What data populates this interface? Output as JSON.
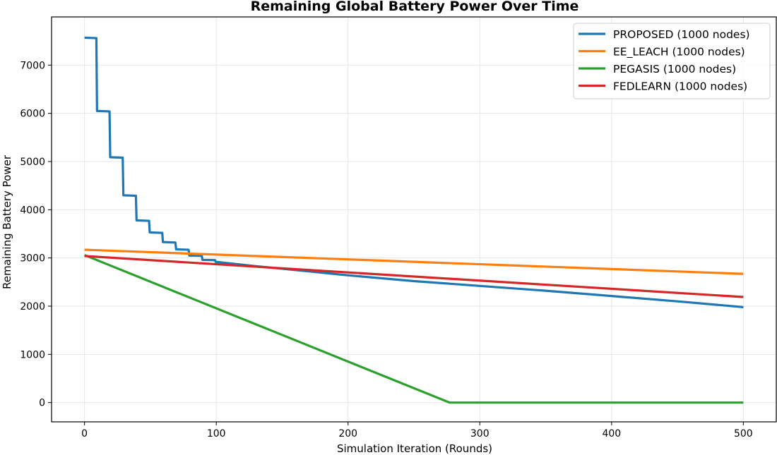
{
  "chart_data": {
    "type": "line",
    "title": "Remaining Global Battery Power Over Time",
    "xlabel": "Simulation Iteration (Rounds)",
    "ylabel": "Remaining Battery Power",
    "xlim": [
      -25,
      525
    ],
    "ylim": [
      -400,
      8000
    ],
    "xticks": [
      0,
      100,
      200,
      300,
      400,
      500
    ],
    "yticks": [
      0,
      1000,
      2000,
      3000,
      4000,
      5000,
      6000,
      7000
    ],
    "grid": true,
    "legend_position": "top-right",
    "series": [
      {
        "name": "PROPOSED (1000 nodes)",
        "color": "#1f77b4",
        "x": [
          0,
          9,
          9.5,
          19,
          19.5,
          29,
          29.5,
          39,
          39.5,
          49,
          49.5,
          59,
          59.5,
          69,
          69.5,
          79,
          79.5,
          89,
          89.5,
          99,
          99.5,
          130,
          160,
          200,
          250,
          300,
          350,
          400,
          450,
          500
        ],
        "y": [
          7570,
          7560,
          6050,
          6040,
          5090,
          5080,
          4300,
          4290,
          3780,
          3770,
          3530,
          3520,
          3330,
          3320,
          3180,
          3170,
          3050,
          3045,
          2960,
          2955,
          2920,
          2830,
          2750,
          2640,
          2520,
          2420,
          2320,
          2210,
          2100,
          1980
        ]
      },
      {
        "name": "EE_LEACH (1000 nodes)",
        "color": "#ff7f0e",
        "x": [
          0,
          500
        ],
        "y": [
          3170,
          2670
        ]
      },
      {
        "name": "PEGASIS (1000 nodes)",
        "color": "#2ca02c",
        "x": [
          0,
          277,
          500
        ],
        "y": [
          3060,
          0,
          0
        ]
      },
      {
        "name": "FEDLEARN (1000 nodes)",
        "color": "#d62728",
        "x": [
          0,
          500
        ],
        "y": [
          3040,
          2190
        ]
      }
    ]
  }
}
